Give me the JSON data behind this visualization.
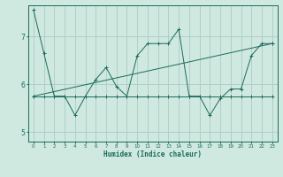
{
  "xlabel": "Humidex (Indice chaleur)",
  "bg_color": "#cfe8e0",
  "line_color": "#1a6b5a",
  "grid_color": "#aaccc4",
  "xlim": [
    -0.5,
    23.5
  ],
  "ylim": [
    4.8,
    7.65
  ],
  "yticks": [
    5,
    6,
    7
  ],
  "xticks": [
    0,
    1,
    2,
    3,
    4,
    5,
    6,
    7,
    8,
    9,
    10,
    11,
    12,
    13,
    14,
    15,
    16,
    17,
    18,
    19,
    20,
    21,
    22,
    23
  ],
  "series1_x": [
    0,
    1,
    2,
    3,
    4,
    5,
    6,
    7,
    8,
    9,
    10,
    11,
    12,
    13,
    14,
    15,
    16,
    17,
    18,
    19,
    20,
    21,
    22,
    23
  ],
  "series1_y": [
    7.55,
    6.65,
    5.75,
    5.75,
    5.35,
    5.75,
    6.1,
    6.35,
    5.95,
    5.75,
    6.6,
    6.85,
    6.85,
    6.85,
    7.15,
    5.75,
    5.75,
    5.35,
    5.7,
    5.9,
    5.9,
    6.6,
    6.85,
    6.85
  ],
  "series2_x": [
    0,
    1,
    2,
    3,
    4,
    5,
    6,
    7,
    8,
    9,
    10,
    11,
    12,
    13,
    14,
    15,
    16,
    17,
    18,
    19,
    20,
    21,
    22,
    23
  ],
  "series2_y": [
    5.75,
    5.75,
    5.75,
    5.75,
    5.75,
    5.75,
    5.75,
    5.75,
    5.75,
    5.75,
    5.75,
    5.75,
    5.75,
    5.75,
    5.75,
    5.75,
    5.75,
    5.75,
    5.75,
    5.75,
    5.75,
    5.75,
    5.75,
    5.75
  ],
  "series3_x": [
    0,
    23
  ],
  "series3_y": [
    5.75,
    6.85
  ]
}
